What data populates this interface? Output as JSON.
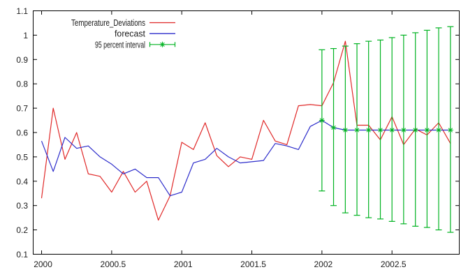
{
  "page": {
    "background": "#ffffff"
  },
  "chart_data": {
    "type": "line",
    "title": "",
    "xlabel": "",
    "ylabel": "",
    "grid": false,
    "xlim": [
      1999.94,
      2002.98
    ],
    "ylim": [
      0.1,
      1.1
    ],
    "x_ticks": [
      2000,
      2000.5,
      2001,
      2001.5,
      2002,
      2002.5
    ],
    "x_tick_labels": [
      "2000",
      "2000.5",
      "2001",
      "2001.5",
      "2002",
      "2002.5"
    ],
    "y_ticks": [
      0.1,
      0.2,
      0.3,
      0.4,
      0.5,
      0.6,
      0.7,
      0.8,
      0.9,
      1.0,
      1.1
    ],
    "y_tick_labels": [
      "0.1",
      "0.2",
      "0.3",
      "0.4",
      "0.5",
      "0.6",
      "0.7",
      "0.8",
      "0.9",
      "1",
      "1.1"
    ],
    "x": [
      2000.0,
      2000.083,
      2000.167,
      2000.25,
      2000.333,
      2000.417,
      2000.5,
      2000.583,
      2000.667,
      2000.75,
      2000.833,
      2000.917,
      2001.0,
      2001.083,
      2001.167,
      2001.25,
      2001.333,
      2001.417,
      2001.5,
      2001.583,
      2001.667,
      2001.75,
      2001.833,
      2001.917,
      2002.0,
      2002.083,
      2002.167,
      2002.25,
      2002.333,
      2002.417,
      2002.5,
      2002.583,
      2002.667,
      2002.75,
      2002.833,
      2002.917
    ],
    "series": [
      {
        "name": "Temperature_Deviations",
        "style": "line",
        "color": "#e02828",
        "values": [
          0.33,
          0.7,
          0.49,
          0.6,
          0.43,
          0.42,
          0.355,
          0.44,
          0.355,
          0.4,
          0.24,
          0.34,
          0.56,
          0.53,
          0.64,
          0.505,
          0.46,
          0.5,
          0.49,
          0.65,
          0.565,
          0.55,
          0.71,
          0.715,
          0.71,
          0.805,
          0.975,
          0.63,
          0.63,
          0.57,
          0.665,
          0.55,
          0.615,
          0.59,
          0.64,
          0.555
        ]
      },
      {
        "name": "forecast",
        "style": "line",
        "color": "#2d2dcb",
        "values": [
          0.565,
          0.44,
          0.58,
          0.535,
          0.545,
          0.5,
          0.47,
          0.43,
          0.45,
          0.415,
          0.415,
          0.34,
          0.355,
          0.475,
          0.49,
          0.535,
          0.5,
          0.475,
          0.48,
          0.485,
          0.555,
          0.545,
          0.53,
          0.625,
          0.65,
          0.62,
          0.61,
          0.61,
          0.61,
          0.61,
          0.61,
          0.61,
          0.61,
          0.61,
          0.61,
          0.61
        ]
      },
      {
        "name": "95 percent interval",
        "style": "yerrorbars",
        "color": "#00b321",
        "x": [
          2002.0,
          2002.083,
          2002.167,
          2002.25,
          2002.333,
          2002.417,
          2002.5,
          2002.583,
          2002.667,
          2002.75,
          2002.833,
          2002.917
        ],
        "center": [
          0.65,
          0.62,
          0.61,
          0.61,
          0.61,
          0.61,
          0.61,
          0.61,
          0.61,
          0.61,
          0.61,
          0.61
        ],
        "upper": [
          0.94,
          0.945,
          0.955,
          0.965,
          0.975,
          0.98,
          0.99,
          1.0,
          1.01,
          1.02,
          1.03,
          1.035
        ],
        "lower": [
          0.36,
          0.3,
          0.27,
          0.26,
          0.25,
          0.245,
          0.235,
          0.225,
          0.215,
          0.21,
          0.2,
          0.19
        ]
      }
    ],
    "legend": {
      "position": "inside-top-left",
      "entries": [
        "Temperature_Deviations",
        "forecast",
        "95 percent interval"
      ],
      "text_widths": [
        106,
        44,
        72
      ]
    },
    "axis_color": "#000000",
    "tick_label_color": "#1c1c1c"
  }
}
